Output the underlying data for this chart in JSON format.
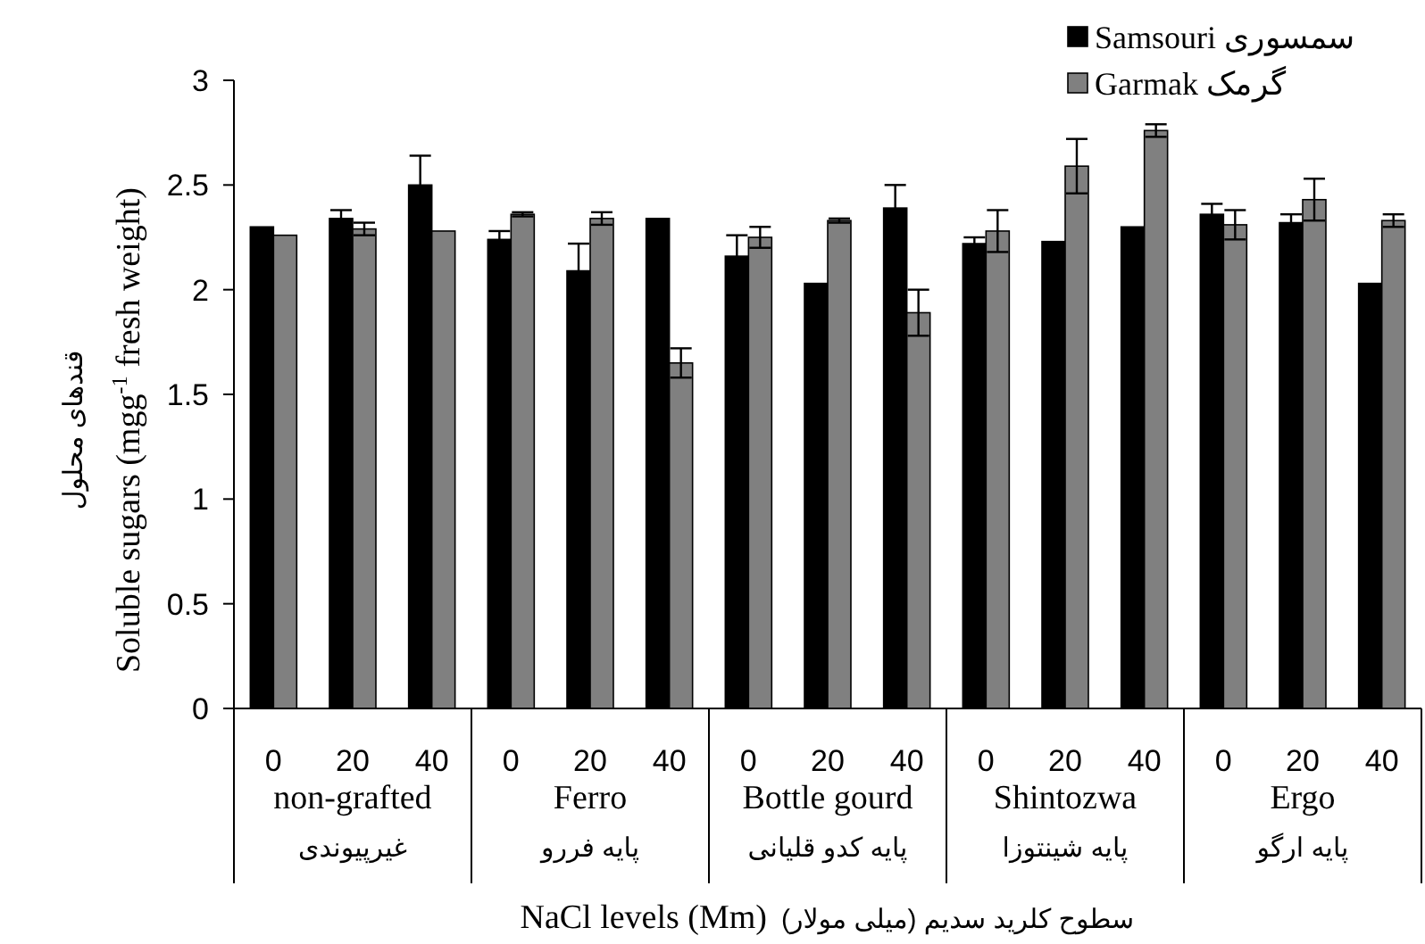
{
  "chart_data": {
    "type": "bar",
    "xlabel": "NaCl levels (Mm) سطوح کلرید سدیم (میلی مولار)",
    "ylabel": "قندهای محلول\nSoluble sugars (mgg$^{-1}$ fresh weight)",
    "categories": [
      "0",
      "20",
      "40",
      "0",
      "20",
      "40",
      "0",
      "20",
      "40",
      "0",
      "20",
      "40",
      "0",
      "20",
      "40"
    ],
    "series": [
      {
        "name": "Samsouri سمسوری",
        "color": "#000000",
        "values": [
          2.3,
          2.34,
          2.5,
          2.24,
          2.09,
          2.34,
          2.16,
          2.03,
          2.39,
          2.22,
          2.23,
          2.3,
          2.36,
          2.32,
          2.03
        ],
        "errors": [
          null,
          0.04,
          0.14,
          0.04,
          0.13,
          null,
          0.1,
          null,
          0.11,
          0.03,
          null,
          null,
          0.05,
          0.04,
          null
        ]
      },
      {
        "name": "Garmak گرمک",
        "color": "#808080",
        "values": [
          2.26,
          2.29,
          2.28,
          2.36,
          2.34,
          1.65,
          2.25,
          2.33,
          1.89,
          2.28,
          2.59,
          2.76,
          2.31,
          2.43,
          2.33
        ],
        "errors": [
          null,
          0.03,
          null,
          0.01,
          0.03,
          0.07,
          0.05,
          0.01,
          0.11,
          0.1,
          0.13,
          0.03,
          0.07,
          0.1,
          0.03
        ]
      }
    ],
    "ylim": [
      0,
      3
    ],
    "yticks": [
      0,
      0.5,
      1,
      1.5,
      2,
      2.5,
      3
    ],
    "legend": "top right",
    "annotations": [
      "non-grafted",
      "غیرپیوندی",
      "Ferro",
      "پایه فررو",
      "Bottle gourd",
      "پایه کدو قلیانی",
      "Shintozwa",
      "پایه شینتوزا",
      "Ergo",
      "پایه ارگو"
    ]
  }
}
